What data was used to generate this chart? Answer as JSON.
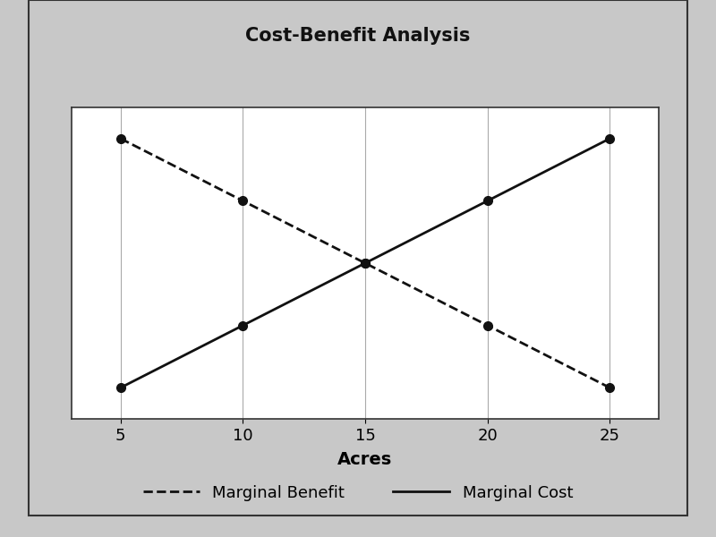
{
  "title": "Cost-Benefit Analysis",
  "xlabel": "Acres",
  "x": [
    5,
    10,
    15,
    20,
    25
  ],
  "marginal_benefit": [
    90,
    70,
    50,
    30,
    10
  ],
  "marginal_cost": [
    10,
    30,
    50,
    70,
    90
  ],
  "xticks": [
    5,
    10,
    15,
    20,
    25
  ],
  "ylim": [
    0,
    100
  ],
  "xlim": [
    3,
    27
  ],
  "title_fontsize": 15,
  "axis_label_fontsize": 14,
  "tick_fontsize": 13,
  "legend_fontsize": 13,
  "line_color": "#111111",
  "marker": "o",
  "markersize": 7,
  "linewidth": 2.0,
  "outer_bg": "#c8c8c8",
  "title_bg": "#d8d8d8",
  "plot_area_bg": "#e8e8e8",
  "chart_bg": "#ffffff",
  "grid_color": "#aaaaaa",
  "border_color": "#333333"
}
